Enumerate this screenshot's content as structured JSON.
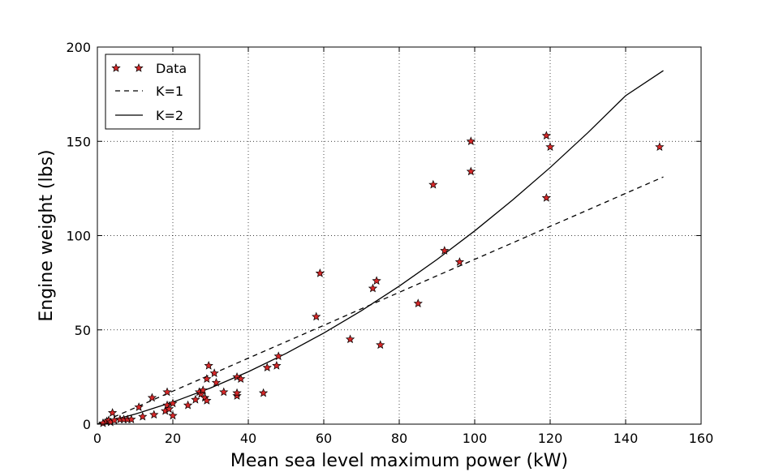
{
  "chart_data": {
    "type": "scatter",
    "title": "",
    "xlabel": "Mean sea level maximum power (kW)",
    "ylabel": "Engine weight (lbs)",
    "xlim": [
      0,
      160
    ],
    "ylim": [
      0,
      200
    ],
    "xticks": [
      "0",
      "20",
      "40",
      "60",
      "80",
      "100",
      "120",
      "140",
      "160"
    ],
    "yticks": [
      "0",
      "50",
      "100",
      "150",
      "200"
    ],
    "grid": true,
    "legend_position": "top-left",
    "legend": [
      "Data",
      "K=1",
      "K=2"
    ],
    "marker_color": "#d62728",
    "series": [
      {
        "name": "Data",
        "kind": "points",
        "points": [
          [
            1.5,
            0.5
          ],
          [
            2.5,
            1.5
          ],
          [
            3,
            2
          ],
          [
            3.5,
            1
          ],
          [
            4,
            6
          ],
          [
            4.5,
            2
          ],
          [
            6,
            2.5
          ],
          [
            7,
            2.5
          ],
          [
            8,
            2.5
          ],
          [
            9,
            2.5
          ],
          [
            11,
            9
          ],
          [
            12,
            4
          ],
          [
            14.5,
            14
          ],
          [
            15,
            5
          ],
          [
            18,
            7
          ],
          [
            18.5,
            17
          ],
          [
            18.5,
            10
          ],
          [
            19,
            8
          ],
          [
            20,
            4.5
          ],
          [
            20,
            11
          ],
          [
            24,
            10
          ],
          [
            26,
            13
          ],
          [
            27,
            17
          ],
          [
            27.5,
            16
          ],
          [
            28,
            18
          ],
          [
            28.5,
            14
          ],
          [
            29,
            12.5
          ],
          [
            29,
            24
          ],
          [
            29.5,
            31
          ],
          [
            31,
            27
          ],
          [
            31.5,
            22
          ],
          [
            33.5,
            17
          ],
          [
            37,
            15
          ],
          [
            37,
            16.5
          ],
          [
            37,
            25
          ],
          [
            38,
            24
          ],
          [
            44,
            16.5
          ],
          [
            45,
            30
          ],
          [
            47.5,
            31
          ],
          [
            48,
            36
          ],
          [
            58,
            57
          ],
          [
            59,
            80
          ],
          [
            67,
            45
          ],
          [
            73,
            72
          ],
          [
            74,
            76
          ],
          [
            75,
            42
          ],
          [
            85,
            64
          ],
          [
            89,
            127
          ],
          [
            92,
            92
          ],
          [
            96,
            86
          ],
          [
            99,
            150
          ],
          [
            99,
            134
          ],
          [
            119,
            153
          ],
          [
            119,
            120
          ],
          [
            120,
            147
          ],
          [
            149,
            147
          ]
        ]
      },
      {
        "name": "K=1",
        "kind": "line",
        "style": "dashed",
        "x": [
          0,
          10,
          20,
          30,
          40,
          50,
          60,
          70,
          80,
          90,
          100,
          110,
          120,
          130,
          140,
          150
        ],
        "y": [
          0,
          8.7,
          17.5,
          26.2,
          35,
          43.7,
          52.4,
          61.2,
          69.9,
          78.7,
          87.4,
          96.1,
          104.9,
          113.6,
          122.4,
          131.1
        ]
      },
      {
        "name": "K=2",
        "kind": "line",
        "style": "solid",
        "x": [
          0,
          10,
          20,
          30,
          40,
          50,
          60,
          70,
          80,
          90,
          100,
          110,
          120,
          130,
          140,
          150
        ],
        "y": [
          0,
          5.3,
          11.7,
          19.2,
          27.8,
          37.5,
          48.3,
          60.2,
          73.2,
          87.3,
          102.5,
          118.8,
          136.1,
          154.6,
          174.2,
          187.5
        ]
      }
    ]
  }
}
